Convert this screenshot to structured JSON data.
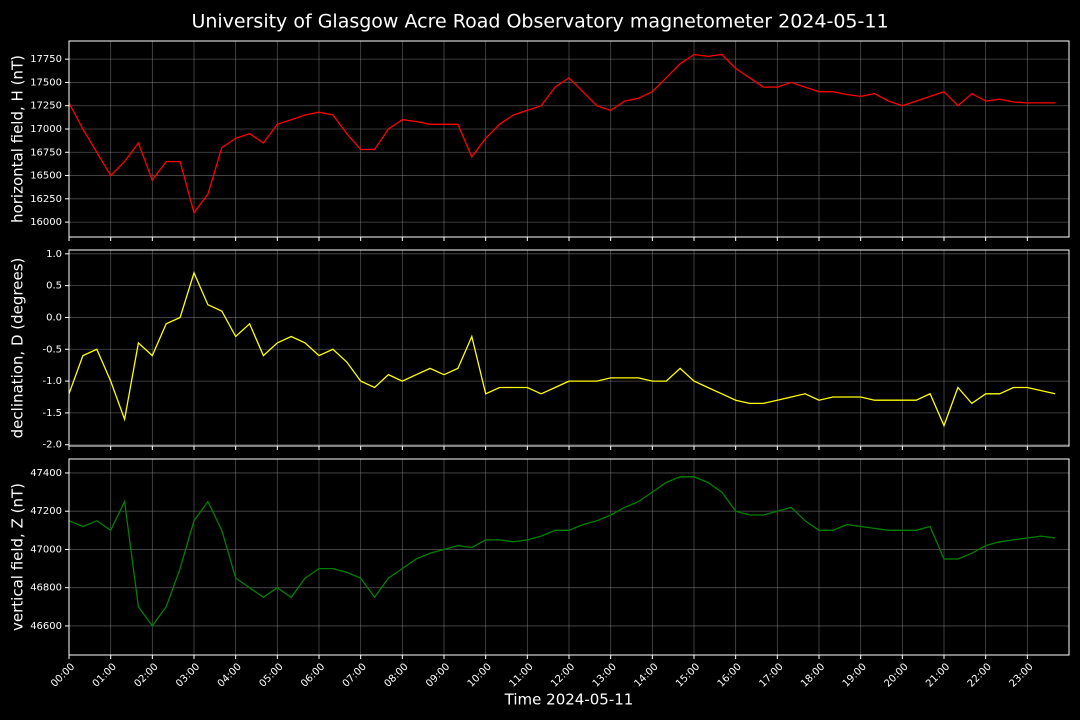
{
  "chart_data": {
    "type": "line",
    "title": "University of Glasgow Acre Road Observatory magnetometer 2024-05-11",
    "xlabel": "Time 2024-05-11",
    "grid": true,
    "xlim": [
      "00:00",
      "24:00"
    ],
    "xticks": [
      "00:00",
      "01:00",
      "02:00",
      "03:00",
      "04:00",
      "05:00",
      "06:00",
      "07:00",
      "08:00",
      "09:00",
      "10:00",
      "11:00",
      "12:00",
      "13:00",
      "14:00",
      "15:00",
      "16:00",
      "17:00",
      "18:00",
      "19:00",
      "20:00",
      "21:00",
      "22:00",
      "23:00"
    ],
    "x": [
      "00:00",
      "00:20",
      "00:40",
      "01:00",
      "01:20",
      "01:40",
      "02:00",
      "02:20",
      "02:40",
      "03:00",
      "03:20",
      "03:40",
      "04:00",
      "04:20",
      "04:40",
      "05:00",
      "05:20",
      "05:40",
      "06:00",
      "06:20",
      "06:40",
      "07:00",
      "07:20",
      "07:40",
      "08:00",
      "08:20",
      "08:40",
      "09:00",
      "09:20",
      "09:40",
      "10:00",
      "10:20",
      "10:40",
      "11:00",
      "11:20",
      "11:40",
      "12:00",
      "12:20",
      "12:40",
      "13:00",
      "13:20",
      "13:40",
      "14:00",
      "14:20",
      "14:40",
      "15:00",
      "15:20",
      "15:40",
      "16:00",
      "16:20",
      "16:40",
      "17:00",
      "17:20",
      "17:40",
      "18:00",
      "18:20",
      "18:40",
      "19:00",
      "19:20",
      "19:40",
      "20:00",
      "20:20",
      "20:40",
      "21:00",
      "21:20",
      "21:40",
      "22:00",
      "22:20",
      "22:40",
      "23:00",
      "23:20",
      "23:40"
    ],
    "panels": [
      {
        "ylabel": "horizontal field, H (nT)",
        "ylim": [
          15840,
          17945
        ],
        "yticks": [
          16000,
          16250,
          16500,
          16750,
          17000,
          17250,
          17500,
          17750
        ],
        "color": "#ff0000",
        "values": [
          17280,
          17000,
          16750,
          16500,
          16650,
          16850,
          16450,
          16650,
          16650,
          16100,
          16300,
          16800,
          16900,
          16950,
          16850,
          17050,
          17100,
          17150,
          17180,
          17150,
          16950,
          16780,
          16780,
          17000,
          17100,
          17080,
          17050,
          17050,
          17050,
          16700,
          16900,
          17050,
          17150,
          17200,
          17250,
          17450,
          17550,
          17400,
          17250,
          17200,
          17300,
          17330,
          17400,
          17550,
          17700,
          17800,
          17780,
          17800,
          17650,
          17550,
          17450,
          17450,
          17500,
          17450,
          17400,
          17400,
          17370,
          17350,
          17380,
          17300,
          17250,
          17300,
          17350,
          17400,
          17250,
          17380,
          17300,
          17320,
          17290,
          17280,
          17280,
          17280
        ]
      },
      {
        "ylabel": "declination, D (degrees)",
        "ylim": [
          -2.02,
          1.06
        ],
        "yticks": [
          {
            "value": -2,
            "label": "-2.0"
          },
          -1.5,
          {
            "value": -1,
            "label": "-1.0"
          },
          -0.5,
          {
            "value": 0,
            "label": "0.0"
          },
          0.5,
          {
            "value": 1,
            "label": "1.0"
          }
        ],
        "color": "#ffff00",
        "values": [
          -1.2,
          -0.6,
          -0.5,
          -1.0,
          -1.6,
          -0.4,
          -0.6,
          -0.1,
          0.0,
          0.7,
          0.2,
          0.1,
          -0.3,
          -0.1,
          -0.6,
          -0.4,
          -0.3,
          -0.4,
          -0.6,
          -0.5,
          -0.7,
          -1.0,
          -1.1,
          -0.9,
          -1.0,
          -0.9,
          -0.8,
          -0.9,
          -0.8,
          -0.3,
          -1.2,
          -1.1,
          -1.1,
          -1.1,
          -1.2,
          -1.1,
          -1.0,
          -1.0,
          -1.0,
          -0.95,
          -0.95,
          -0.95,
          -1.0,
          -1.0,
          -0.8,
          -1.0,
          -1.1,
          -1.2,
          -1.3,
          -1.35,
          -1.35,
          -1.3,
          -1.25,
          -1.2,
          -1.3,
          -1.25,
          -1.25,
          -1.25,
          -1.3,
          -1.3,
          -1.3,
          -1.3,
          -1.2,
          -1.7,
          -1.1,
          -1.35,
          -1.2,
          -1.2,
          -1.1,
          -1.1,
          -1.15,
          -1.2
        ]
      },
      {
        "ylabel": "vertical field, Z (nT)",
        "ylim": [
          46448,
          47473
        ],
        "yticks": [
          46600,
          46800,
          47000,
          47200,
          47400
        ],
        "color": "#008000",
        "values": [
          47150,
          47120,
          47150,
          47100,
          47250,
          46700,
          46600,
          46700,
          46900,
          47150,
          47250,
          47100,
          46850,
          46800,
          46750,
          46800,
          46750,
          46850,
          46900,
          46900,
          46880,
          46850,
          46750,
          46850,
          46900,
          46950,
          46980,
          47000,
          47020,
          47010,
          47050,
          47050,
          47040,
          47050,
          47070,
          47100,
          47100,
          47130,
          47150,
          47180,
          47220,
          47250,
          47300,
          47350,
          47380,
          47380,
          47350,
          47300,
          47200,
          47180,
          47180,
          47200,
          47220,
          47150,
          47100,
          47100,
          47130,
          47120,
          47110,
          47100,
          47100,
          47100,
          47120,
          46950,
          46950,
          46980,
          47020,
          47040,
          47050,
          47060,
          47070,
          47060
        ]
      }
    ]
  }
}
